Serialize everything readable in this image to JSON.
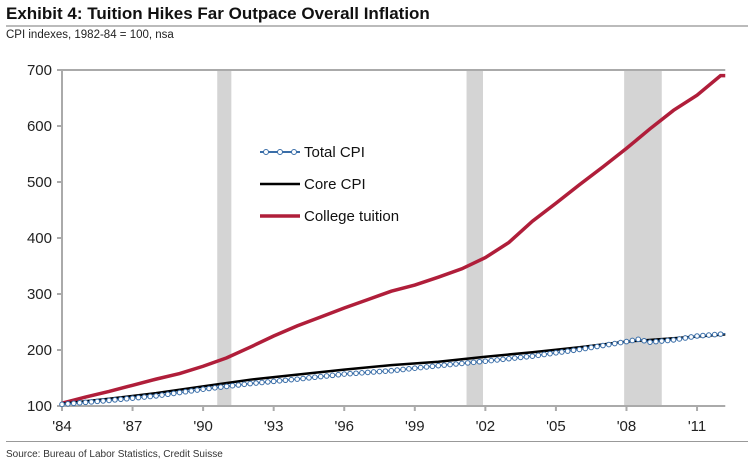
{
  "title": "Exhibit 4: Tuition Hikes Far Outpace Overall Inflation",
  "subtitle": "CPI indexes, 1982-84 = 100, nsa",
  "source": "Source: Bureau of Labor Statistics, Credit Suisse",
  "chart_data": {
    "type": "line",
    "title": "Exhibit 4: Tuition Hikes Far Outpace Overall Inflation",
    "ylabel": "CPI indexes, 1982-84 = 100, nsa",
    "ylim": [
      100,
      700
    ],
    "xlim": [
      1984,
      2012.2
    ],
    "yticks": [
      100,
      200,
      300,
      400,
      500,
      600,
      700
    ],
    "xticks": [
      {
        "v": 1984,
        "label": "'84"
      },
      {
        "v": 1987,
        "label": "'87"
      },
      {
        "v": 1990,
        "label": "'90"
      },
      {
        "v": 1993,
        "label": "'93"
      },
      {
        "v": 1996,
        "label": "'96"
      },
      {
        "v": 1999,
        "label": "'99"
      },
      {
        "v": 2002,
        "label": "'02"
      },
      {
        "v": 2005,
        "label": "'05"
      },
      {
        "v": 2008,
        "label": "'08"
      },
      {
        "v": 2011,
        "label": "'11"
      }
    ],
    "recessions": [
      [
        1990.6,
        1991.2
      ],
      [
        2001.2,
        2001.9
      ],
      [
        2007.9,
        2009.5
      ]
    ],
    "legend_position": "upper-left-center",
    "series": [
      {
        "name": "Total CPI",
        "color": "#3a6ea8",
        "marker": "circle",
        "x": [
          1984,
          1986,
          1988,
          1990,
          1992,
          1994,
          1996,
          1998,
          2000,
          2002,
          2004,
          2006,
          2008,
          2008.5,
          2009,
          2010,
          2011,
          2012.2
        ],
        "y": [
          103,
          110,
          118,
          130,
          140,
          148,
          157,
          163,
          172,
          180,
          189,
          201,
          215,
          219,
          214,
          218,
          225,
          229
        ]
      },
      {
        "name": "Core CPI",
        "color": "#000000",
        "marker": "none",
        "x": [
          1984,
          1986,
          1988,
          1990,
          1992,
          1994,
          1996,
          1998,
          2000,
          2002,
          2004,
          2006,
          2008,
          2010,
          2012.2
        ],
        "y": [
          104,
          113,
          123,
          135,
          147,
          156,
          165,
          173,
          179,
          188,
          196,
          205,
          215,
          221,
          228
        ]
      },
      {
        "name": "College tuition",
        "color": "#b01e3a",
        "marker": "none",
        "x": [
          1984,
          1985,
          1986,
          1987,
          1988,
          1989,
          1990,
          1991,
          1992,
          1993,
          1994,
          1995,
          1996,
          1997,
          1998,
          1999,
          2000,
          2001,
          2002,
          2003,
          2004,
          2005,
          2006,
          2007,
          2008,
          2009,
          2010,
          2011,
          2012,
          2012.2
        ],
        "y": [
          105,
          116,
          126,
          137,
          148,
          158,
          171,
          186,
          205,
          225,
          243,
          259,
          275,
          290,
          305,
          316,
          330,
          345,
          365,
          392,
          430,
          462,
          495,
          527,
          560,
          595,
          628,
          655,
          690,
          690
        ]
      }
    ]
  }
}
